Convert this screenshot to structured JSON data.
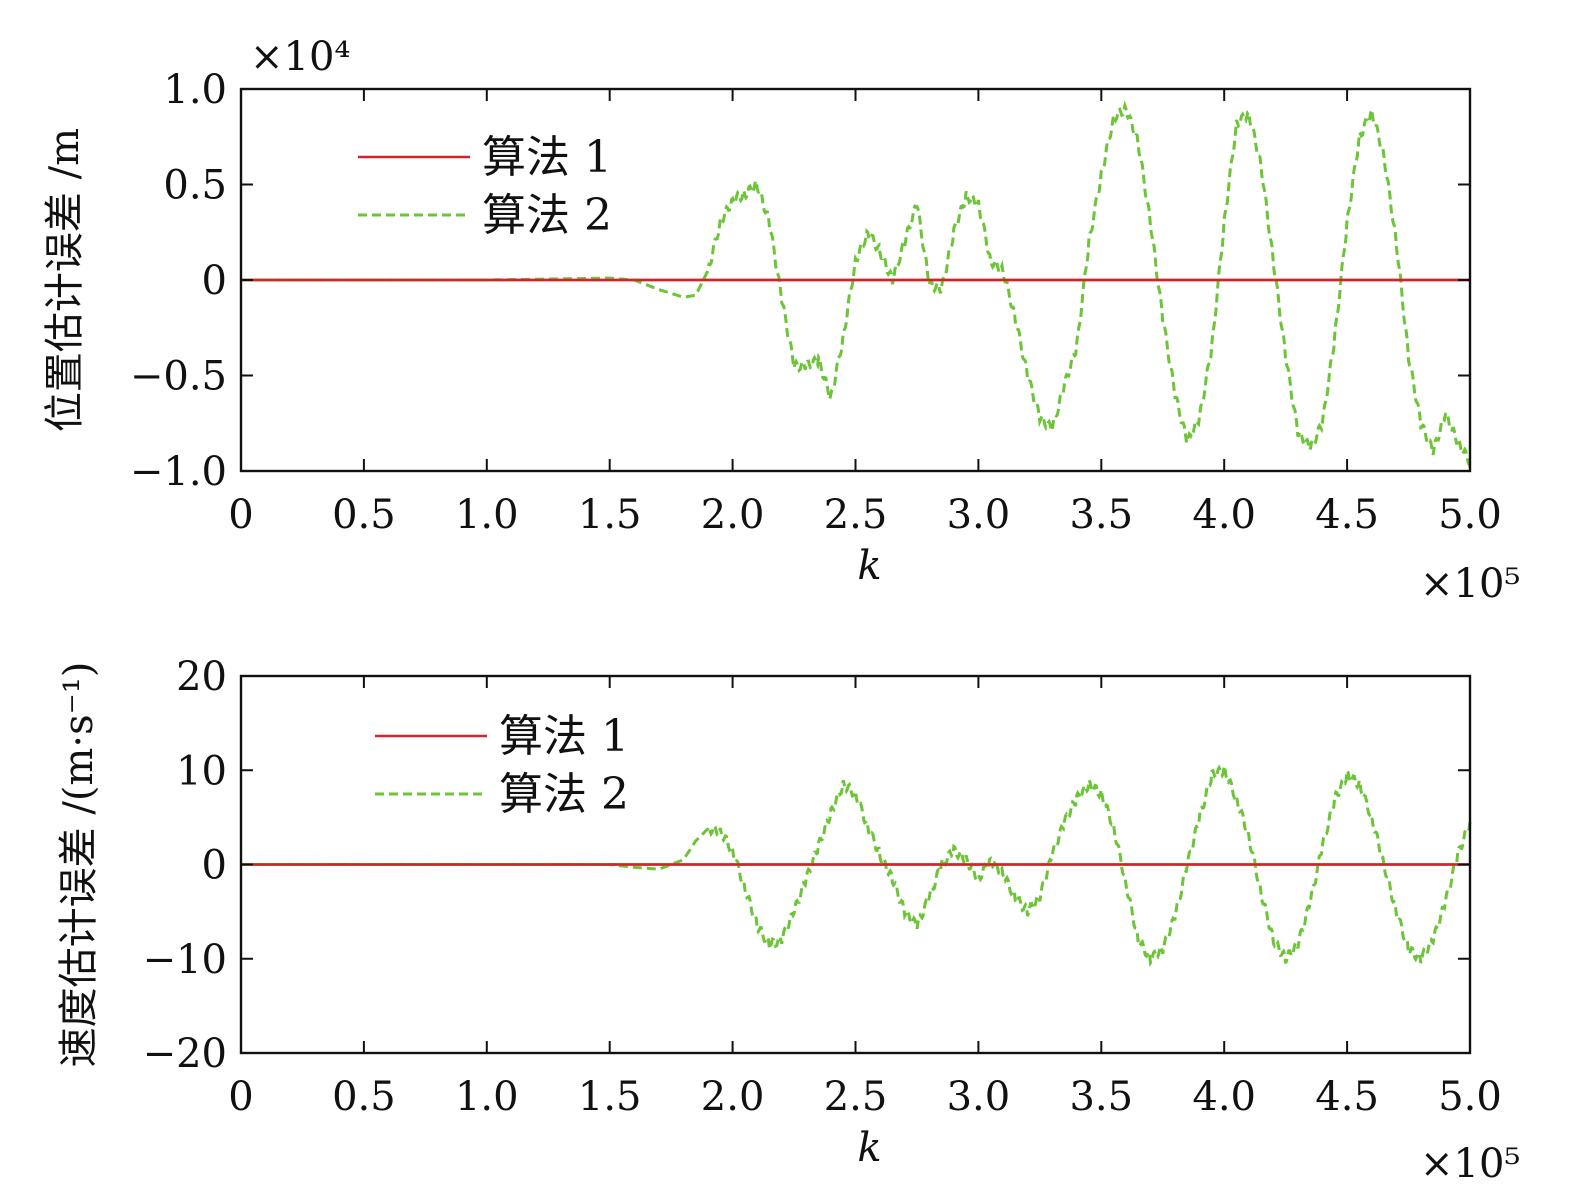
{
  "chart_data": [
    {
      "type": "line",
      "xlabel": "k",
      "ylabel": "位置估计误差 /m",
      "x_exponent": "×10⁵",
      "y_exponent": "×10⁴",
      "xlim": [
        0,
        5.0
      ],
      "ylim": [
        -1.0,
        1.0
      ],
      "x_ticks": [
        "0",
        "0.5",
        "1.0",
        "1.5",
        "2.0",
        "2.5",
        "3.0",
        "3.5",
        "4.0",
        "4.5",
        "5.0"
      ],
      "y_ticks": [
        "−1.0",
        "−0.5",
        "0",
        "0.5",
        "1.0"
      ],
      "grid": false,
      "legend_position": "top-left",
      "series": [
        {
          "name": "算法 1",
          "color": "#d0242a",
          "style": "solid",
          "x": [
            0,
            5.0
          ],
          "y": [
            0,
            0
          ]
        },
        {
          "name": "算法 2",
          "color": "#6cc437",
          "style": "dashed",
          "x": [
            0,
            0.5,
            1.0,
            1.5,
            1.6,
            1.7,
            1.8,
            1.85,
            1.9,
            1.95,
            2.0,
            2.05,
            2.1,
            2.15,
            2.2,
            2.25,
            2.3,
            2.35,
            2.4,
            2.45,
            2.5,
            2.55,
            2.6,
            2.65,
            2.7,
            2.75,
            2.8,
            2.85,
            2.9,
            2.95,
            3.0,
            3.05,
            3.1,
            3.15,
            3.2,
            3.25,
            3.3,
            3.35,
            3.4,
            3.45,
            3.5,
            3.55,
            3.6,
            3.65,
            3.7,
            3.75,
            3.8,
            3.85,
            3.9,
            3.95,
            4.0,
            4.05,
            4.1,
            4.15,
            4.2,
            4.25,
            4.3,
            4.35,
            4.4,
            4.45,
            4.5,
            4.55,
            4.6,
            4.65,
            4.7,
            4.75,
            4.8,
            4.85,
            4.9,
            4.95,
            5.0
          ],
          "y": [
            0,
            0,
            0,
            0.01,
            0,
            -0.05,
            -0.09,
            -0.08,
            0.05,
            0.3,
            0.42,
            0.45,
            0.5,
            0.3,
            -0.1,
            -0.45,
            -0.45,
            -0.42,
            -0.62,
            -0.3,
            0.1,
            0.25,
            0.15,
            0.0,
            0.2,
            0.4,
            -0.02,
            -0.05,
            0.25,
            0.44,
            0.4,
            0.1,
            0.05,
            -0.2,
            -0.5,
            -0.72,
            -0.78,
            -0.55,
            -0.35,
            0.2,
            0.55,
            0.85,
            0.9,
            0.72,
            0.3,
            -0.2,
            -0.6,
            -0.85,
            -0.72,
            -0.35,
            0.3,
            0.82,
            0.87,
            0.6,
            0.1,
            -0.4,
            -0.8,
            -0.88,
            -0.75,
            -0.3,
            0.3,
            0.75,
            0.88,
            0.65,
            0.2,
            -0.4,
            -0.75,
            -0.9,
            -0.7,
            -0.85,
            -0.95
          ]
        }
      ]
    },
    {
      "type": "line",
      "xlabel": "k",
      "ylabel": "速度估计误差 /(m·s⁻¹)",
      "x_exponent": "×10⁵",
      "xlim": [
        0,
        5.0
      ],
      "ylim": [
        -20,
        20
      ],
      "x_ticks": [
        "0",
        "0.5",
        "1.0",
        "1.5",
        "2.0",
        "2.5",
        "3.0",
        "3.5",
        "4.0",
        "4.5",
        "5.0"
      ],
      "y_ticks": [
        "−20",
        "−10",
        "0",
        "10",
        "20"
      ],
      "grid": false,
      "legend_position": "top-left",
      "series": [
        {
          "name": "算法 1",
          "color": "#d0242a",
          "style": "solid",
          "x": [
            0,
            5.0
          ],
          "y": [
            0,
            0
          ]
        },
        {
          "name": "算法 2",
          "color": "#6cc437",
          "style": "dashed",
          "x": [
            0,
            0.5,
            1.0,
            1.5,
            1.6,
            1.7,
            1.8,
            1.85,
            1.9,
            1.95,
            2.0,
            2.05,
            2.1,
            2.15,
            2.2,
            2.25,
            2.3,
            2.35,
            2.4,
            2.45,
            2.5,
            2.55,
            2.6,
            2.65,
            2.7,
            2.75,
            2.8,
            2.85,
            2.9,
            2.95,
            3.0,
            3.05,
            3.1,
            3.15,
            3.2,
            3.25,
            3.3,
            3.35,
            3.4,
            3.45,
            3.5,
            3.55,
            3.6,
            3.65,
            3.7,
            3.75,
            3.8,
            3.85,
            3.9,
            3.95,
            4.0,
            4.05,
            4.1,
            4.15,
            4.2,
            4.25,
            4.3,
            4.35,
            4.4,
            4.45,
            4.5,
            4.55,
            4.6,
            4.65,
            4.7,
            4.75,
            4.8,
            4.85,
            4.9,
            4.95,
            5.0
          ],
          "y": [
            0,
            0,
            0,
            0,
            -0.3,
            -0.5,
            0.5,
            2.5,
            3.8,
            3.5,
            1.5,
            -2.5,
            -6.5,
            -8.5,
            -8.0,
            -5.0,
            -1.5,
            2.0,
            5.5,
            8.5,
            7.5,
            4.0,
            1.0,
            -1.5,
            -5.0,
            -6.5,
            -3.5,
            0.0,
            1.5,
            0.5,
            -1.5,
            0.5,
            -1.0,
            -3.5,
            -5.0,
            -3.5,
            1.0,
            4.5,
            7.0,
            8.5,
            7.5,
            4.0,
            -2.0,
            -8.0,
            -10.0,
            -9.0,
            -5.5,
            0.0,
            5.0,
            9.5,
            10.0,
            7.0,
            3.0,
            -3.0,
            -8.0,
            -10.0,
            -8.5,
            -4.0,
            2.0,
            7.0,
            9.5,
            8.5,
            5.0,
            0.0,
            -5.0,
            -9.0,
            -10.0,
            -8.0,
            -4.0,
            1.0,
            4.5
          ]
        }
      ]
    }
  ]
}
